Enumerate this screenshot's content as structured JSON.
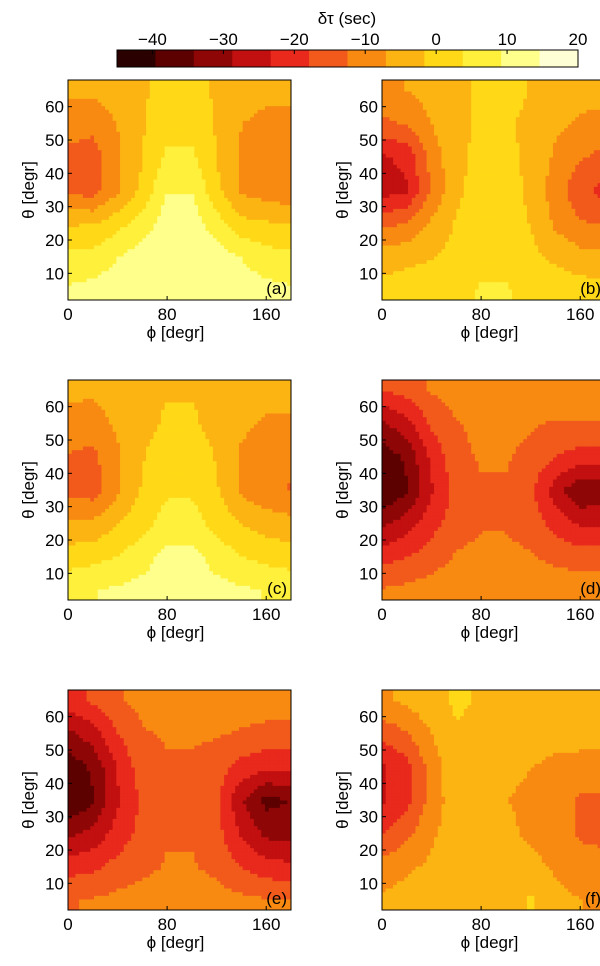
{
  "colorbar": {
    "title": "δτ (sec)",
    "ticks": [
      "−40",
      "−30",
      "−20",
      "−10",
      "0",
      "10",
      "20"
    ],
    "range": [
      -45,
      20
    ],
    "colors": [
      "#2a0000",
      "#5c0000",
      "#8e0606",
      "#c20f0f",
      "#e8291c",
      "#f25a1c",
      "#f88a12",
      "#fcb413",
      "#ffd817",
      "#fff03c",
      "#ffff8c",
      "#ffffd6"
    ]
  },
  "axes": {
    "xlabel": "ϕ [degr]",
    "ylabel": "θ [degr]",
    "xticks": [
      "0",
      "80",
      "160"
    ],
    "yticks": [
      "10",
      "20",
      "30",
      "40",
      "50",
      "60"
    ]
  },
  "chart_data": [
    {
      "type": "heatmap",
      "panel": "(a)",
      "xlabel": "ϕ [degr]",
      "ylabel": "θ [degr]",
      "xlim": [
        0,
        180
      ],
      "ylim": [
        2,
        68
      ],
      "x": [
        0,
        20,
        40,
        60,
        80,
        100,
        120,
        140,
        160,
        180
      ],
      "y": [
        5,
        15,
        25,
        35,
        45,
        55,
        65
      ],
      "z": [
        [
          10,
          11,
          12,
          13,
          14,
          14,
          13,
          12,
          11,
          10
        ],
        [
          5,
          6,
          9,
          12,
          14,
          14,
          12,
          9,
          6,
          5
        ],
        [
          -2,
          -2,
          2,
          6,
          12,
          12,
          6,
          0,
          -1,
          -2
        ],
        [
          -14,
          -15,
          -8,
          0,
          9,
          9,
          0,
          -8,
          -10,
          -11
        ],
        [
          -14,
          -15,
          -8,
          -2,
          5,
          5,
          -2,
          -8,
          -10,
          -11
        ],
        [
          -10,
          -11,
          -7,
          -2,
          1,
          1,
          -2,
          -7,
          -9,
          -9
        ],
        [
          -6,
          -6,
          -4,
          -2,
          -1,
          -1,
          -2,
          -4,
          -5,
          -5
        ]
      ]
    },
    {
      "type": "heatmap",
      "panel": "(b)",
      "xlabel": "ϕ [degr]",
      "ylabel": "θ [degr]",
      "xlim": [
        0,
        180
      ],
      "ylim": [
        2,
        68
      ],
      "x": [
        0,
        20,
        40,
        60,
        80,
        100,
        120,
        140,
        160,
        180
      ],
      "y": [
        5,
        15,
        25,
        35,
        45,
        55,
        65
      ],
      "z": [
        [
          0,
          1,
          2,
          3,
          4,
          4,
          3,
          2,
          1,
          0
        ],
        [
          -4,
          -3,
          -2,
          0,
          3,
          3,
          0,
          -3,
          -5,
          -6
        ],
        [
          -14,
          -12,
          -6,
          -1,
          2,
          2,
          -2,
          -8,
          -12,
          -13
        ],
        [
          -26,
          -24,
          -12,
          -3,
          1,
          1,
          -3,
          -10,
          -16,
          -20
        ],
        [
          -24,
          -22,
          -10,
          -3,
          0,
          0,
          -3,
          -8,
          -12,
          -14
        ],
        [
          -14,
          -12,
          -7,
          -3,
          -1,
          -1,
          -3,
          -6,
          -8,
          -9
        ],
        [
          -8,
          -7,
          -5,
          -3,
          -1,
          1,
          -2,
          -4,
          -5,
          -5
        ]
      ]
    },
    {
      "type": "heatmap",
      "panel": "(c)",
      "xlabel": "ϕ [degr]",
      "ylabel": "θ [degr]",
      "xlim": [
        0,
        180
      ],
      "ylim": [
        2,
        68
      ],
      "x": [
        0,
        20,
        40,
        60,
        80,
        100,
        120,
        140,
        160,
        180
      ],
      "y": [
        5,
        15,
        25,
        35,
        45,
        55,
        65
      ],
      "z": [
        [
          8,
          9,
          10,
          11,
          12,
          12,
          11,
          10,
          9,
          8
        ],
        [
          1,
          2,
          4,
          7,
          11,
          11,
          7,
          4,
          2,
          1
        ],
        [
          -6,
          -6,
          -2,
          2,
          6,
          6,
          2,
          -2,
          -4,
          -5
        ],
        [
          -14,
          -15,
          -8,
          -1,
          3,
          3,
          -1,
          -8,
          -11,
          -13
        ],
        [
          -13,
          -14,
          -8,
          -2,
          1,
          1,
          -2,
          -8,
          -10,
          -11
        ],
        [
          -9,
          -10,
          -6,
          -3,
          -1,
          -1,
          -3,
          -6,
          -8,
          -8
        ],
        [
          -6,
          -6,
          -4,
          -3,
          -2,
          -2,
          -3,
          -4,
          -5,
          -5
        ]
      ]
    },
    {
      "type": "heatmap",
      "panel": "(d)",
      "xlabel": "ϕ [degr]",
      "ylabel": "θ [degr]",
      "xlim": [
        0,
        180
      ],
      "ylim": [
        2,
        68
      ],
      "x": [
        0,
        20,
        40,
        60,
        80,
        100,
        120,
        140,
        160,
        180
      ],
      "y": [
        5,
        15,
        25,
        35,
        45,
        55,
        65
      ],
      "z": [
        [
          -12,
          -11,
          -10,
          -9,
          -8,
          -8,
          -8,
          -9,
          -9,
          -9
        ],
        [
          -20,
          -18,
          -15,
          -12,
          -11,
          -11,
          -12,
          -14,
          -15,
          -15
        ],
        [
          -30,
          -26,
          -20,
          -15,
          -13,
          -13,
          -15,
          -20,
          -24,
          -24
        ],
        [
          -40,
          -35,
          -24,
          -16,
          -13,
          -13,
          -17,
          -26,
          -34,
          -32
        ],
        [
          -38,
          -33,
          -22,
          -14,
          -12,
          -12,
          -14,
          -18,
          -20,
          -20
        ],
        [
          -30,
          -25,
          -17,
          -13,
          -11,
          -11,
          -12,
          -13,
          -13,
          -13
        ],
        [
          -18,
          -16,
          -12,
          -10,
          -9,
          -9,
          -9,
          -9,
          -9,
          -9
        ]
      ]
    },
    {
      "type": "heatmap",
      "panel": "(e)",
      "xlabel": "ϕ [degr]",
      "ylabel": "θ [degr]",
      "xlim": [
        0,
        180
      ],
      "ylim": [
        2,
        68
      ],
      "x": [
        0,
        20,
        40,
        60,
        80,
        100,
        120,
        140,
        160,
        180
      ],
      "y": [
        5,
        15,
        25,
        35,
        45,
        55,
        65
      ],
      "z": [
        [
          -13,
          -12,
          -11,
          -10,
          -9,
          -9,
          -10,
          -11,
          -12,
          -12
        ],
        [
          -20,
          -19,
          -16,
          -14,
          -12,
          -12,
          -14,
          -18,
          -21,
          -22
        ],
        [
          -30,
          -27,
          -21,
          -16,
          -13,
          -13,
          -16,
          -24,
          -30,
          -31
        ],
        [
          -40,
          -35,
          -24,
          -17,
          -14,
          -14,
          -17,
          -28,
          -36,
          -34
        ],
        [
          -38,
          -33,
          -23,
          -15,
          -13,
          -13,
          -15,
          -20,
          -22,
          -22
        ],
        [
          -30,
          -26,
          -18,
          -13,
          -12,
          -12,
          -12,
          -13,
          -14,
          -14
        ],
        [
          -20,
          -17,
          -13,
          -11,
          -10,
          -10,
          -10,
          -10,
          -10,
          -10
        ]
      ]
    },
    {
      "type": "heatmap",
      "panel": "(f)",
      "xlabel": "ϕ [degr]",
      "ylabel": "θ [degr]",
      "xlim": [
        0,
        180
      ],
      "ylim": [
        2,
        68
      ],
      "x": [
        0,
        20,
        40,
        60,
        80,
        100,
        120,
        140,
        160,
        180
      ],
      "y": [
        5,
        15,
        25,
        35,
        45,
        55,
        65
      ],
      "z": [
        [
          -6,
          -5,
          -3,
          -2,
          -4,
          -4,
          -1,
          -5,
          -7,
          -8
        ],
        [
          -10,
          -8,
          -6,
          -4,
          -5,
          -5,
          -5,
          -8,
          -11,
          -12
        ],
        [
          -18,
          -14,
          -8,
          -4,
          -5,
          -6,
          -8,
          -11,
          -13,
          -13
        ],
        [
          -24,
          -20,
          -10,
          -4,
          -6,
          -7,
          -8,
          -11,
          -13,
          -13
        ],
        [
          -24,
          -20,
          -10,
          -3,
          -6,
          -6,
          -7,
          -9,
          -10,
          -10
        ],
        [
          -16,
          -13,
          -7,
          -2,
          -3,
          -3,
          -3,
          -4,
          -4,
          -4
        ],
        [
          -8,
          -6,
          -3,
          -1,
          -2,
          -2,
          -2,
          -2,
          -2,
          -2
        ]
      ]
    }
  ]
}
